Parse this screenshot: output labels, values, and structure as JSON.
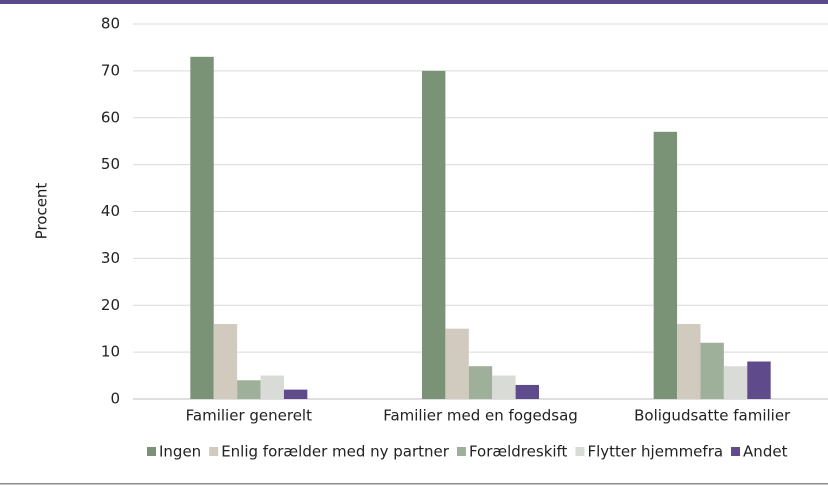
{
  "chart_data": {
    "type": "bar",
    "y_label": "Procent",
    "categories": [
      "Familier generelt",
      "Familier med en fogedsag",
      "Boligudsatte familier"
    ],
    "series": [
      {
        "name": "Ingen",
        "color": "#7a9376",
        "values": [
          73,
          70,
          57
        ]
      },
      {
        "name": "Enlig forælder med ny partner",
        "color": "#d1cbbf",
        "values": [
          16,
          15,
          16
        ]
      },
      {
        "name": "Forældreskift",
        "color": "#9fb09a",
        "values": [
          4,
          7,
          12
        ]
      },
      {
        "name": "Flytter hjemmefra",
        "color": "#d9dbd6",
        "values": [
          5,
          5,
          7
        ]
      },
      {
        "name": "Andet",
        "color": "#5f4a8b",
        "values": [
          2,
          3,
          8
        ]
      }
    ],
    "ylim": [
      0,
      80
    ],
    "yticks": [
      0,
      10,
      20,
      30,
      40,
      50,
      60,
      70,
      80
    ],
    "grid": true,
    "legend": "bottom"
  }
}
